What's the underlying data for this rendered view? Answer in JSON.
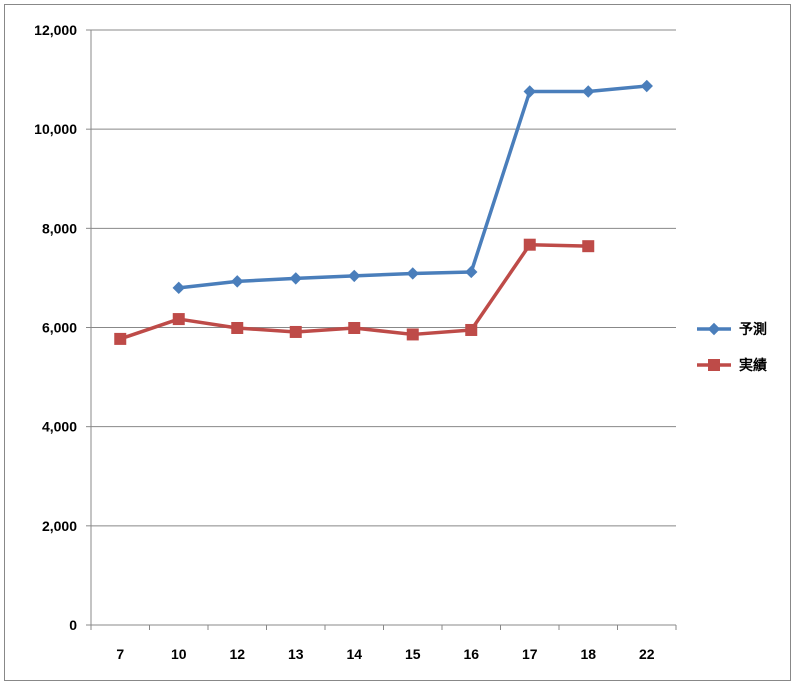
{
  "chart_data": {
    "type": "line",
    "categories": [
      "7",
      "10",
      "12",
      "13",
      "14",
      "15",
      "16",
      "17",
      "18",
      "22"
    ],
    "series": [
      {
        "name": "予測",
        "color": "#4a7ebb",
        "marker": "diamond",
        "values": [
          null,
          6800,
          6930,
          6990,
          7040,
          7090,
          7120,
          10760,
          10760,
          10870
        ]
      },
      {
        "name": "実績",
        "color": "#be4b48",
        "marker": "square",
        "values": [
          5770,
          6170,
          5990,
          5910,
          5990,
          5860,
          5950,
          7670,
          7640,
          null
        ]
      }
    ],
    "y_ticks": [
      "0",
      "2,000",
      "4,000",
      "6,000",
      "8,000",
      "10,000",
      "12,000"
    ],
    "ylim": [
      0,
      12000
    ],
    "grid": true,
    "legend_position": "right",
    "title": "",
    "xlabel": "",
    "ylabel": ""
  }
}
